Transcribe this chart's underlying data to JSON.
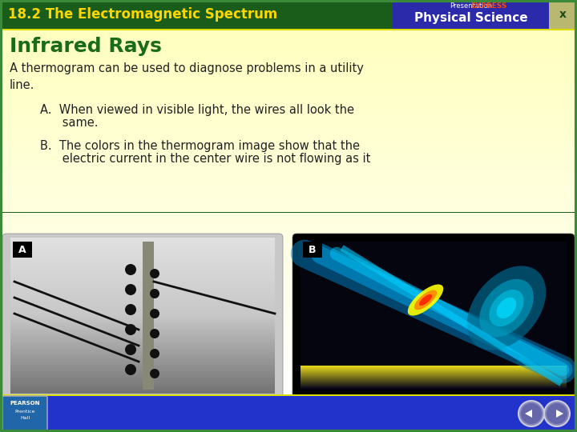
{
  "header_bg_color": "#1a5c1a",
  "header_text": "18.2 The Electromagnetic Spectrum",
  "header_text_color": "#FFD700",
  "header_font_size": 12,
  "express_color": "#FF4400",
  "physical_science_label": "Physical Science",
  "blue_box_color": "#2a2aaa",
  "title": "Infrared Rays",
  "title_color": "#1a6b1a",
  "title_font_size": 18,
  "body_color": "#222222",
  "body_font_size": 10.5,
  "body_text": "A thermogram can be used to diagnose problems in a utility\nline.",
  "bullet_a_1": "A.  When viewed in visible light, the wires all look the",
  "bullet_a_2": "      same.",
  "bullet_b_1": "B.  The colors in the thermogram image show that the",
  "bullet_b_2": "      electric current in the center wire is not flowing as it",
  "footer_color": "#2233cc",
  "border_color": "#3a8a3a",
  "yellow_line_color": "#dddd00"
}
